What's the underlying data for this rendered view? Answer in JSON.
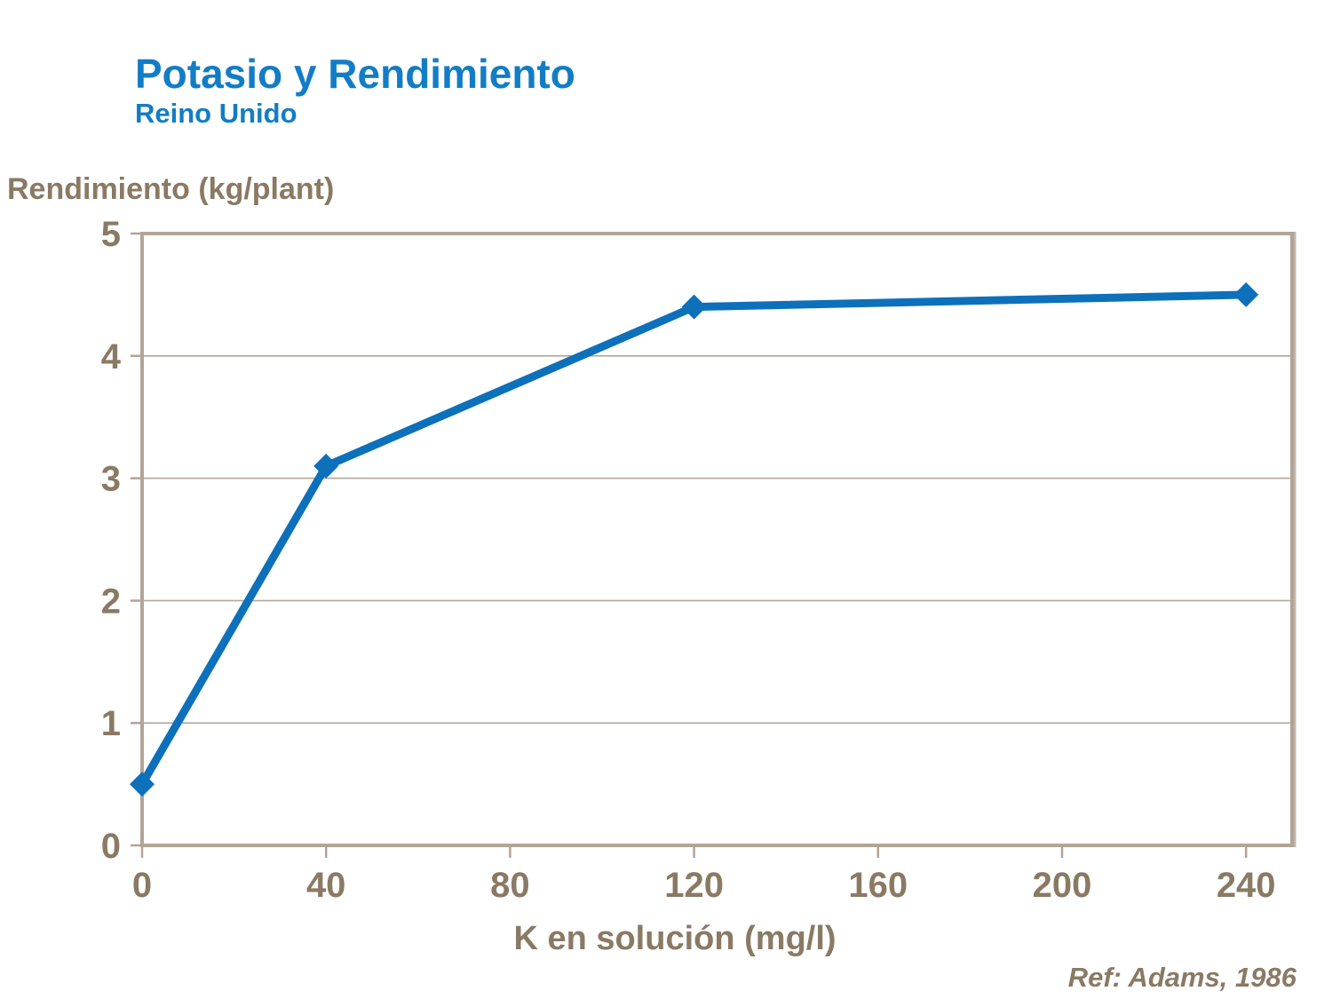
{
  "header": {
    "title": "Potasio y Rendimiento",
    "subtitle": "Reino Unido"
  },
  "footer": {
    "reference": "Ref: Adams, 1986"
  },
  "chart_data": {
    "type": "line",
    "title": "Potasio y Rendimiento",
    "subtitle": "Reino Unido",
    "xlabel": "K en solución (mg/l)",
    "ylabel": "Rendimiento (kg/plant)",
    "series": [
      {
        "name": "Rendimiento",
        "x": [
          0,
          40,
          120,
          240
        ],
        "y": [
          0.5,
          3.1,
          4.4,
          4.5
        ]
      }
    ],
    "xlim": [
      0,
      250
    ],
    "ylim": [
      0,
      5
    ],
    "x_ticks": [
      0,
      40,
      80,
      120,
      160,
      200,
      240
    ],
    "y_ticks": [
      0,
      1,
      2,
      3,
      4,
      5
    ],
    "grid": "horizontal",
    "legend": "none",
    "marker": "diamond",
    "colors": {
      "line": "#0d70bb",
      "title_blue": "#127dc6",
      "axis": "#b2a496",
      "gridline": "#b4a79a",
      "tick_text": "#8a7a64"
    }
  }
}
